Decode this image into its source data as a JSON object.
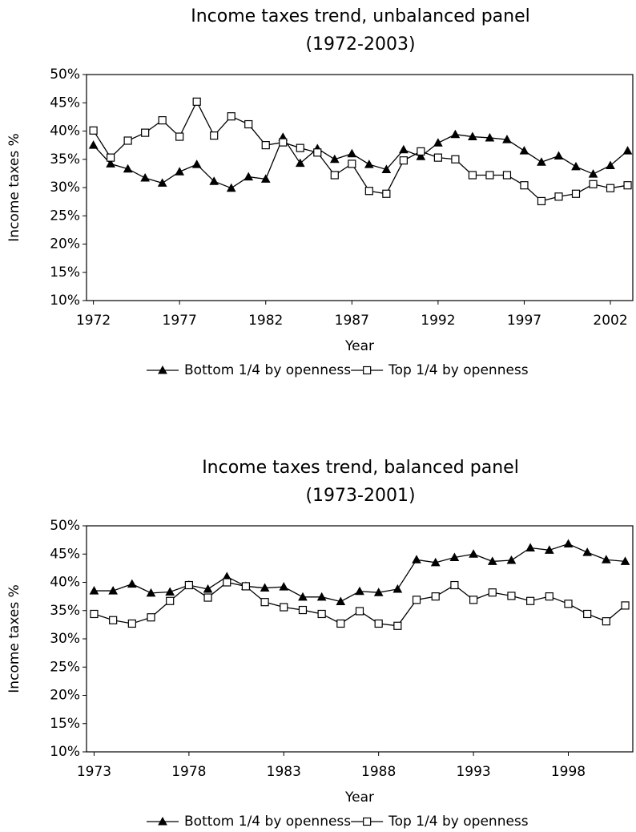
{
  "chart_data": [
    {
      "type": "line",
      "title": "Income taxes trend, unbalanced panel",
      "subtitle": "(1972-2003)",
      "x_label": "Year",
      "y_label": "Income taxes %",
      "x": [
        1972,
        1973,
        1974,
        1975,
        1976,
        1977,
        1978,
        1979,
        1980,
        1981,
        1982,
        1983,
        1984,
        1985,
        1986,
        1987,
        1988,
        1989,
        1990,
        1991,
        1992,
        1993,
        1994,
        1995,
        1996,
        1997,
        1998,
        1999,
        2000,
        2001,
        2002,
        2003
      ],
      "series": [
        {
          "name": "Bottom 1/4 by openness",
          "color": "#000000",
          "marker": "triangle",
          "values": [
            37.5,
            34.2,
            33.3,
            31.7,
            30.8,
            32.8,
            34.1,
            31.1,
            29.9,
            31.9,
            31.5,
            38.9,
            34.3,
            36.9,
            35.0,
            36.0,
            34.1,
            33.2,
            36.7,
            35.5,
            37.9,
            39.4,
            39.0,
            38.8,
            38.5,
            36.5,
            34.5,
            35.6,
            33.7,
            32.4,
            33.9,
            36.5
          ]
        },
        {
          "name": "Top 1/4 by openness",
          "color": "#000000",
          "marker": "square",
          "values": [
            40.1,
            35.3,
            38.3,
            39.7,
            41.9,
            39.0,
            45.2,
            39.2,
            42.6,
            41.2,
            37.5,
            38.0,
            37.0,
            36.2,
            32.2,
            34.2,
            29.4,
            28.9,
            34.8,
            36.4,
            35.3,
            35.0,
            32.2,
            32.2,
            32.2,
            30.4,
            27.6,
            28.4,
            28.9,
            30.6,
            29.9,
            30.4
          ]
        }
      ],
      "xlim": [
        1971.6,
        2003.3
      ],
      "xticks": [
        1972,
        1977,
        1982,
        1987,
        1992,
        1997,
        2002
      ],
      "ylim": [
        10,
        50
      ],
      "yticks": [
        {
          "value": 10,
          "label": "10%"
        },
        {
          "value": 15,
          "label": "15%"
        },
        {
          "value": 20,
          "label": "20%"
        },
        {
          "value": 25,
          "label": "25%"
        },
        {
          "value": 30,
          "label": "30%"
        },
        {
          "value": 35,
          "label": "35%"
        },
        {
          "value": 40,
          "label": "40%"
        },
        {
          "value": 45,
          "label": "45%"
        },
        {
          "value": 50,
          "label": "50%"
        }
      ],
      "grid": false,
      "legend": "bottom"
    },
    {
      "type": "line",
      "title": "Income taxes trend, balanced panel",
      "subtitle": "(1973-2001)",
      "x_label": "Year",
      "y_label": "Income taxes %",
      "x": [
        1973,
        1974,
        1975,
        1976,
        1977,
        1978,
        1979,
        1980,
        1981,
        1982,
        1983,
        1984,
        1985,
        1986,
        1987,
        1988,
        1989,
        1990,
        1991,
        1992,
        1993,
        1994,
        1995,
        1996,
        1997,
        1998,
        1999,
        2000,
        2001
      ],
      "series": [
        {
          "name": "Bottom 1/4 by openness",
          "color": "#000000",
          "marker": "triangle",
          "values": [
            38.5,
            38.5,
            39.7,
            38.1,
            38.3,
            39.5,
            38.8,
            41.0,
            39.3,
            39.0,
            39.2,
            37.4,
            37.4,
            36.6,
            38.4,
            38.2,
            38.8,
            44.0,
            43.5,
            44.4,
            45.0,
            43.7,
            43.9,
            46.1,
            45.7,
            46.8,
            45.3,
            44.0,
            43.7
          ]
        },
        {
          "name": "Top 1/4 by openness",
          "color": "#000000",
          "marker": "square",
          "values": [
            34.4,
            33.3,
            32.7,
            33.8,
            36.7,
            39.5,
            37.3,
            40.0,
            39.3,
            36.5,
            35.6,
            35.1,
            34.4,
            32.7,
            34.9,
            32.7,
            32.3,
            36.9,
            37.5,
            39.5,
            36.9,
            38.2,
            37.6,
            36.7,
            37.5,
            36.2,
            34.4,
            33.1,
            35.9
          ]
        }
      ],
      "xlim": [
        1972.6,
        2001.4
      ],
      "xticks": [
        1973,
        1978,
        1983,
        1988,
        1993,
        1998
      ],
      "ylim": [
        10,
        50
      ],
      "yticks": [
        {
          "value": 10,
          "label": "10%"
        },
        {
          "value": 15,
          "label": "15%"
        },
        {
          "value": 20,
          "label": "20%"
        },
        {
          "value": 25,
          "label": "25%"
        },
        {
          "value": 30,
          "label": "30%"
        },
        {
          "value": 35,
          "label": "35%"
        },
        {
          "value": 40,
          "label": "40%"
        },
        {
          "value": 45,
          "label": "45%"
        },
        {
          "value": 50,
          "label": "50%"
        }
      ],
      "grid": false,
      "legend": "bottom"
    }
  ]
}
